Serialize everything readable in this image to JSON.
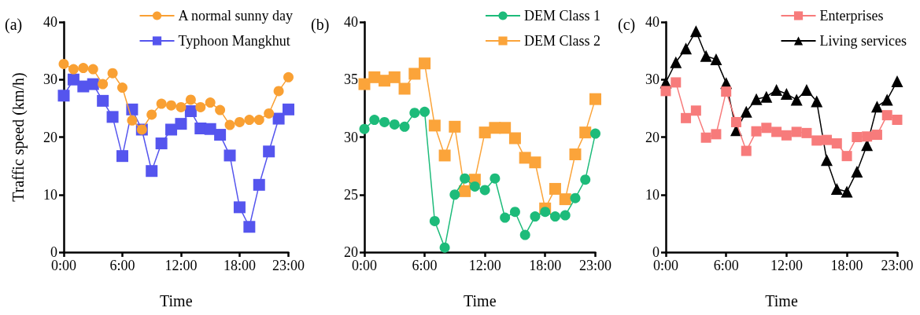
{
  "chart_data": [
    {
      "type": "line",
      "title": "(a)",
      "xlabel": "Time",
      "ylabel": "Traffic speed (km/h)",
      "x": [
        0,
        1,
        2,
        3,
        4,
        5,
        6,
        7,
        8,
        9,
        10,
        11,
        12,
        13,
        14,
        15,
        16,
        17,
        18,
        19,
        20,
        21,
        22,
        23
      ],
      "series": [
        {
          "name": "A normal sunny day",
          "color": "#f9a033",
          "marker": "circle",
          "values": [
            32.7,
            31.8,
            32,
            31.8,
            29.2,
            31.1,
            28.6,
            22.9,
            21.3,
            23.9,
            25.8,
            25.5,
            25.2,
            26.5,
            25.2,
            26,
            24.7,
            22.1,
            22.6,
            23,
            23,
            24.1,
            28,
            30.4
          ]
        },
        {
          "name": "Typhoon Mangkhut",
          "color": "#5555ee",
          "marker": "square",
          "values": [
            27.2,
            30,
            28.8,
            29.2,
            26.3,
            23.5,
            16.7,
            24.8,
            21.3,
            14.1,
            18.9,
            21.3,
            22.3,
            24.5,
            21.5,
            21.4,
            20.4,
            16.8,
            7.8,
            4.4,
            11.7,
            17.5,
            23.2,
            24.8
          ]
        }
      ],
      "xlim": [
        0,
        23
      ],
      "xticks": [
        {
          "value": 0,
          "label": "0:00"
        },
        {
          "value": 6,
          "label": "6:00"
        },
        {
          "value": 12,
          "label": "12:00"
        },
        {
          "value": 18,
          "label": "18:00"
        },
        {
          "value": 23,
          "label": "23:00"
        }
      ],
      "ylim": [
        0,
        40
      ],
      "yticks": [
        0,
        10,
        20,
        30,
        40
      ],
      "legend": "top right"
    },
    {
      "type": "line",
      "title": "(b)",
      "xlabel": "Time",
      "x": [
        0,
        1,
        2,
        3,
        4,
        5,
        6,
        7,
        8,
        9,
        10,
        11,
        12,
        13,
        14,
        15,
        16,
        17,
        18,
        19,
        20,
        21,
        22,
        23
      ],
      "series": [
        {
          "name": "DEM Class 1",
          "color": "#1dbb7a",
          "marker": "circle",
          "values": [
            30.7,
            31.5,
            31.3,
            31.1,
            30.9,
            32.1,
            32.2,
            22.7,
            20.4,
            25,
            26.4,
            25.7,
            25.4,
            26.4,
            23,
            23.5,
            21.5,
            23.1,
            23.5,
            23.1,
            23.2,
            24.7,
            26.3,
            30.3
          ]
        },
        {
          "name": "DEM Class 2",
          "color": "#fba43a",
          "marker": "square",
          "values": [
            34.6,
            35.2,
            34.9,
            35.2,
            34.2,
            35.5,
            36.4,
            31,
            28.4,
            30.9,
            25.3,
            26.3,
            30.4,
            30.8,
            30.8,
            29.9,
            28.2,
            27.8,
            23.8,
            25.5,
            24.6,
            28.5,
            30.4,
            33.3
          ]
        }
      ],
      "xlim": [
        0,
        23
      ],
      "xticks": [
        {
          "value": 0,
          "label": "0:00"
        },
        {
          "value": 6,
          "label": "6:00"
        },
        {
          "value": 12,
          "label": "12:00"
        },
        {
          "value": 18,
          "label": "18:00"
        },
        {
          "value": 23,
          "label": "23:00"
        }
      ],
      "ylim": [
        20,
        40
      ],
      "yticks": [
        20,
        25,
        30,
        35,
        40
      ],
      "legend": "top right"
    },
    {
      "type": "line",
      "title": "(c)",
      "xlabel": "Time",
      "x": [
        0,
        1,
        2,
        3,
        4,
        5,
        6,
        7,
        8,
        9,
        10,
        11,
        12,
        13,
        14,
        15,
        16,
        17,
        18,
        19,
        20,
        21,
        22,
        23
      ],
      "series": [
        {
          "name": "Enterprises",
          "color": "#f77b7b",
          "marker": "square",
          "values": [
            28,
            29.5,
            23.3,
            24.6,
            19.9,
            20.5,
            27.9,
            22.6,
            17.6,
            21,
            21.6,
            20.9,
            20.3,
            20.9,
            20.7,
            19.4,
            19.5,
            18.9,
            16.7,
            20,
            20.1,
            20.4,
            23.8,
            23
          ]
        },
        {
          "name": "Living services",
          "color": "#000000",
          "marker": "triangle",
          "values": [
            29.5,
            33,
            35.4,
            38.4,
            34.1,
            33.5,
            29.4,
            21.2,
            24.4,
            26.6,
            27,
            28.2,
            27.5,
            26.5,
            28.2,
            26.2,
            16,
            11,
            10.5,
            14,
            18.6,
            25.3,
            26.5,
            29.7
          ]
        }
      ],
      "xlim": [
        0,
        23
      ],
      "xticks": [
        {
          "value": 0,
          "label": "0:00"
        },
        {
          "value": 6,
          "label": "6:00"
        },
        {
          "value": 12,
          "label": "12:00"
        },
        {
          "value": 18,
          "label": "18:00"
        },
        {
          "value": 23,
          "label": "23:00"
        }
      ],
      "ylim": [
        0,
        40
      ],
      "yticks": [
        0,
        10,
        20,
        30,
        40
      ],
      "legend": "top right"
    }
  ]
}
